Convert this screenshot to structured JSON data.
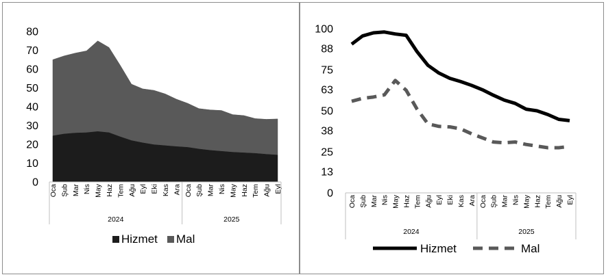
{
  "chart_data": [
    {
      "type": "area",
      "stacked": true,
      "categories": [
        "Oca",
        "Şub",
        "Mar",
        "Nis",
        "May",
        "Haz",
        "Tem",
        "Ağu",
        "Eyl",
        "Eki",
        "Kas",
        "Ara",
        "Oca",
        "Şub",
        "Mar",
        "Nis",
        "May",
        "Haz",
        "Tem",
        "Ağu",
        "Eyl"
      ],
      "groups": [
        {
          "label": "2024",
          "count": 12
        },
        {
          "label": "2025",
          "count": 9
        }
      ],
      "series": [
        {
          "name": "Hizmet",
          "color": "#1c1c1c",
          "values": [
            24.5,
            25.5,
            26,
            26.2,
            26.8,
            26.2,
            24,
            22,
            20.8,
            19.8,
            19.3,
            18.8,
            18.4,
            17.5,
            16.8,
            16.3,
            15.8,
            15.5,
            15.2,
            14.7,
            14.3
          ]
        },
        {
          "name": "Mal",
          "color": "#595959",
          "values": [
            40.5,
            41.5,
            42.5,
            43.5,
            48.2,
            45.3,
            38,
            30,
            28.7,
            28.9,
            27.5,
            25.2,
            23.4,
            21.5,
            21.5,
            21.7,
            20,
            19.8,
            18.5,
            18.6,
            19.2
          ]
        }
      ],
      "yticks": [
        "0",
        "10",
        "20",
        "30",
        "40",
        "50",
        "60",
        "70",
        "80"
      ],
      "ylim": [
        0,
        80
      ],
      "legend": "bottom"
    },
    {
      "type": "line",
      "categories": [
        "Oca",
        "Şub",
        "Mar",
        "Nis",
        "May",
        "Haz",
        "Tem",
        "Ağu",
        "Eyl",
        "Eki",
        "Kas",
        "Ara",
        "Oca",
        "Şub",
        "Mar",
        "Nis",
        "May",
        "Haz",
        "Tem",
        "Ağu",
        "Eyl"
      ],
      "groups": [
        {
          "label": "2024",
          "count": 12
        },
        {
          "label": "2025",
          "count": 9
        }
      ],
      "series": [
        {
          "name": "Hizmet",
          "color": "#000000",
          "dash": "solid",
          "values": [
            90.6,
            95.6,
            97.5,
            98,
            96.8,
            96,
            86,
            77.7,
            73,
            69.8,
            67.8,
            65.5,
            62.8,
            59.5,
            56.5,
            54.5,
            51,
            50,
            47.7,
            44.8,
            44
          ]
        },
        {
          "name": "Mal",
          "color": "#595959",
          "dash": "dashed",
          "values": [
            55.8,
            57.6,
            58.4,
            59.7,
            68.5,
            62.5,
            51,
            42,
            40.5,
            40.2,
            39,
            36,
            33.5,
            31,
            30.5,
            31,
            29.5,
            28.5,
            27.5,
            27.5,
            28.3
          ]
        }
      ],
      "yticks": [
        "0",
        "13",
        "25",
        "38",
        "50",
        "63",
        "75",
        "88",
        "100"
      ],
      "ylim": [
        0,
        100
      ],
      "legend": "bottom"
    }
  ]
}
